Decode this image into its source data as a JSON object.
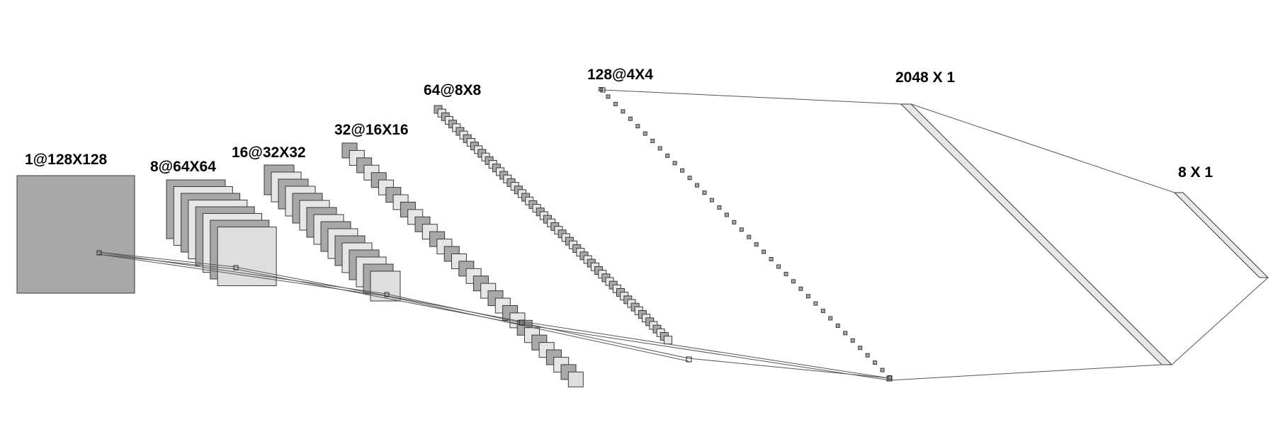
{
  "diagram": {
    "layers": [
      {
        "name": "input",
        "label": "1@128X128",
        "maps": 1
      },
      {
        "name": "conv1",
        "label": "8@64X64",
        "maps": 8
      },
      {
        "name": "conv2",
        "label": "16@32X32",
        "maps": 16
      },
      {
        "name": "conv3",
        "label": "32@16X16",
        "maps": 32
      },
      {
        "name": "conv4",
        "label": "64@8X8",
        "maps": 64
      },
      {
        "name": "conv5",
        "label": "128@4X4",
        "maps": 128
      },
      {
        "name": "dense1",
        "label": "2048 X 1",
        "units": 2048
      },
      {
        "name": "dense2",
        "label": "8 X 1",
        "units": 8
      }
    ],
    "colors": {
      "map_dark": "#a8a8a8",
      "map_light": "#e6e6e6",
      "stroke": "#3a3a3a",
      "connection": "#555555"
    }
  }
}
